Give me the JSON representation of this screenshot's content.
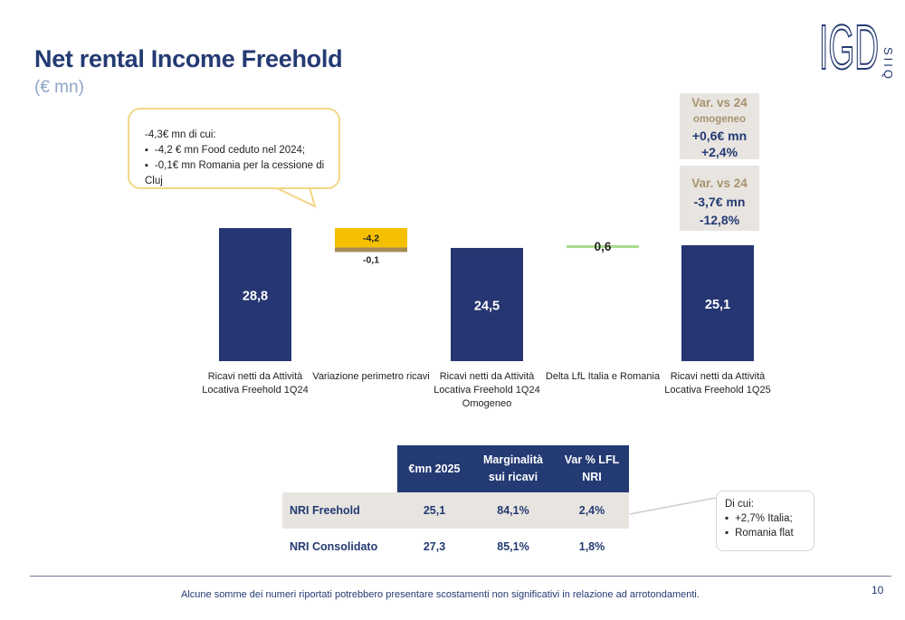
{
  "header": {
    "title": "Net rental Income Freehold",
    "subtitle": "(€ mn)",
    "logo_text": "IGD",
    "logo_subtext": "SIIQ"
  },
  "callout": {
    "intro": "-4,3€ mn di cui:",
    "items": [
      "-4,2 € mn Food ceduto nel 2024;",
      "-0,1€ mn Romania per la cessione di Cluj"
    ]
  },
  "var_boxes": [
    {
      "heading": "Var. vs 24",
      "sub": "omogeneo",
      "value1": "+0,6€ mn",
      "value2": "+2,4%"
    },
    {
      "heading": "Var. vs 24",
      "sub": "",
      "value1": "-3,7€ mn",
      "value2": "-12,8%"
    }
  ],
  "chart_data": {
    "type": "bar",
    "subtype": "waterfall",
    "categories": [
      [
        "Ricavi netti da Attività",
        "Locativa Freehold 1Q24"
      ],
      [
        "Variazione perimetro ricavi"
      ],
      [
        "Ricavi netti da Attività",
        "Locativa Freehold 1Q24",
        "Omogeneo"
      ],
      [
        "Delta LfL Italia e Romania"
      ],
      [
        "Ricavi netti da Attività",
        "Locativa Freehold 1Q25"
      ]
    ],
    "bars": [
      {
        "kind": "total",
        "value": 28.8,
        "label": "28,8",
        "color": "#263672"
      },
      {
        "kind": "delta",
        "start": 28.8,
        "segments": [
          {
            "value": -4.2,
            "label": "-4,2",
            "color": "#f5c000"
          },
          {
            "value": -0.1,
            "label": "-0,1",
            "color": "#a58a55"
          }
        ]
      },
      {
        "kind": "total",
        "value": 24.5,
        "label": "24,5",
        "color": "#263672"
      },
      {
        "kind": "delta",
        "start": 24.5,
        "segments": [
          {
            "value": 0.6,
            "label": "0,6",
            "color": "#a8dc8c"
          }
        ]
      },
      {
        "kind": "total",
        "value": 25.1,
        "label": "25,1",
        "color": "#263672"
      }
    ]
  },
  "table": {
    "headers": [
      "€mn 2025",
      "Marginalità sui ricavi",
      "Var % LFL NRI"
    ],
    "rows": [
      {
        "label": "NRI Freehold",
        "values": [
          "25,1",
          "84,1%",
          "2,4%"
        ]
      },
      {
        "label": "NRI Consolidato",
        "values": [
          "27,3",
          "85,1%",
          "1,8%"
        ]
      }
    ]
  },
  "note_box": {
    "intro": "Di cui:",
    "items": [
      "+2,7% Italia;",
      "Romania flat"
    ]
  },
  "footer": {
    "note": "Alcune somme dei numeri riportati potrebbero presentare scostamenti non significativi in relazione ad arrotondamenti.",
    "page_number": "10"
  }
}
